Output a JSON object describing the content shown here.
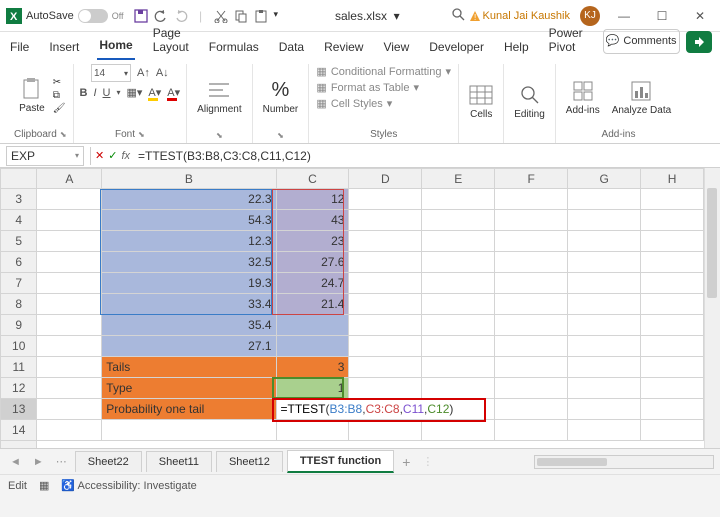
{
  "titlebar": {
    "autosave_label": "AutoSave",
    "autosave_state": "Off",
    "filename": "sales.xlsx",
    "user_name": "Kunal Jai Kaushik",
    "user_initials": "KJ"
  },
  "tabs": {
    "file": "File",
    "insert": "Insert",
    "home": "Home",
    "page": "Page Layout",
    "formulas": "Formulas",
    "data": "Data",
    "review": "Review",
    "view": "View",
    "developer": "Developer",
    "help": "Help",
    "power": "Power Pivot",
    "comments": "Comments"
  },
  "ribbon": {
    "paste": "Paste",
    "clipboard": "Clipboard",
    "fontsize": "14",
    "font": "Font",
    "alignment": "Alignment",
    "number": "Number",
    "cond": "Conditional Formatting",
    "table": "Format as Table",
    "cellstyles": "Cell Styles",
    "styles": "Styles",
    "cells": "Cells",
    "editing": "Editing",
    "addins": "Add-ins",
    "analyze": "Analyze Data",
    "addins_group": "Add-ins"
  },
  "formula_bar": {
    "name": "EXP",
    "formula_text": "=TTEST(B3:B8,C3:C8,C11,C12)"
  },
  "grid": {
    "columns": [
      "A",
      "B",
      "C",
      "D",
      "E",
      "F",
      "G",
      "H"
    ],
    "rows": [
      {
        "n": "3",
        "b": "22.3",
        "c": "12"
      },
      {
        "n": "4",
        "b": "54.3",
        "c": "43"
      },
      {
        "n": "5",
        "b": "12.3",
        "c": "23"
      },
      {
        "n": "6",
        "b": "32.5",
        "c": "27.6"
      },
      {
        "n": "7",
        "b": "19.3",
        "c": "24.7"
      },
      {
        "n": "8",
        "b": "33.4",
        "c": "21.4"
      },
      {
        "n": "9",
        "b": "35.4",
        "c": ""
      },
      {
        "n": "10",
        "b": "27.1",
        "c": ""
      }
    ],
    "tails_label": "Tails",
    "tails_val": "3",
    "type_label": "Type",
    "type_val": "1",
    "prob_label": "Probability one tail",
    "cell_formula_eq": "=TTEST",
    "cell_formula_b": "B3:B8",
    "cell_formula_c": "C3:C8",
    "cell_formula_p": "C11",
    "cell_formula_g": "C12"
  },
  "sheets": {
    "s1": "Sheet22",
    "s2": "Sheet11",
    "s3": "Sheet12",
    "active": "TTEST function"
  },
  "status": {
    "mode": "Edit",
    "acc": "Accessibility: Investigate"
  },
  "colors": {
    "blue_sel": "#a9b8dc",
    "purple_sel": "#b2aed0",
    "orange": "#ed7d31",
    "green": "#a9d08e",
    "accent": "#107c41",
    "red_border": "#d40000"
  }
}
